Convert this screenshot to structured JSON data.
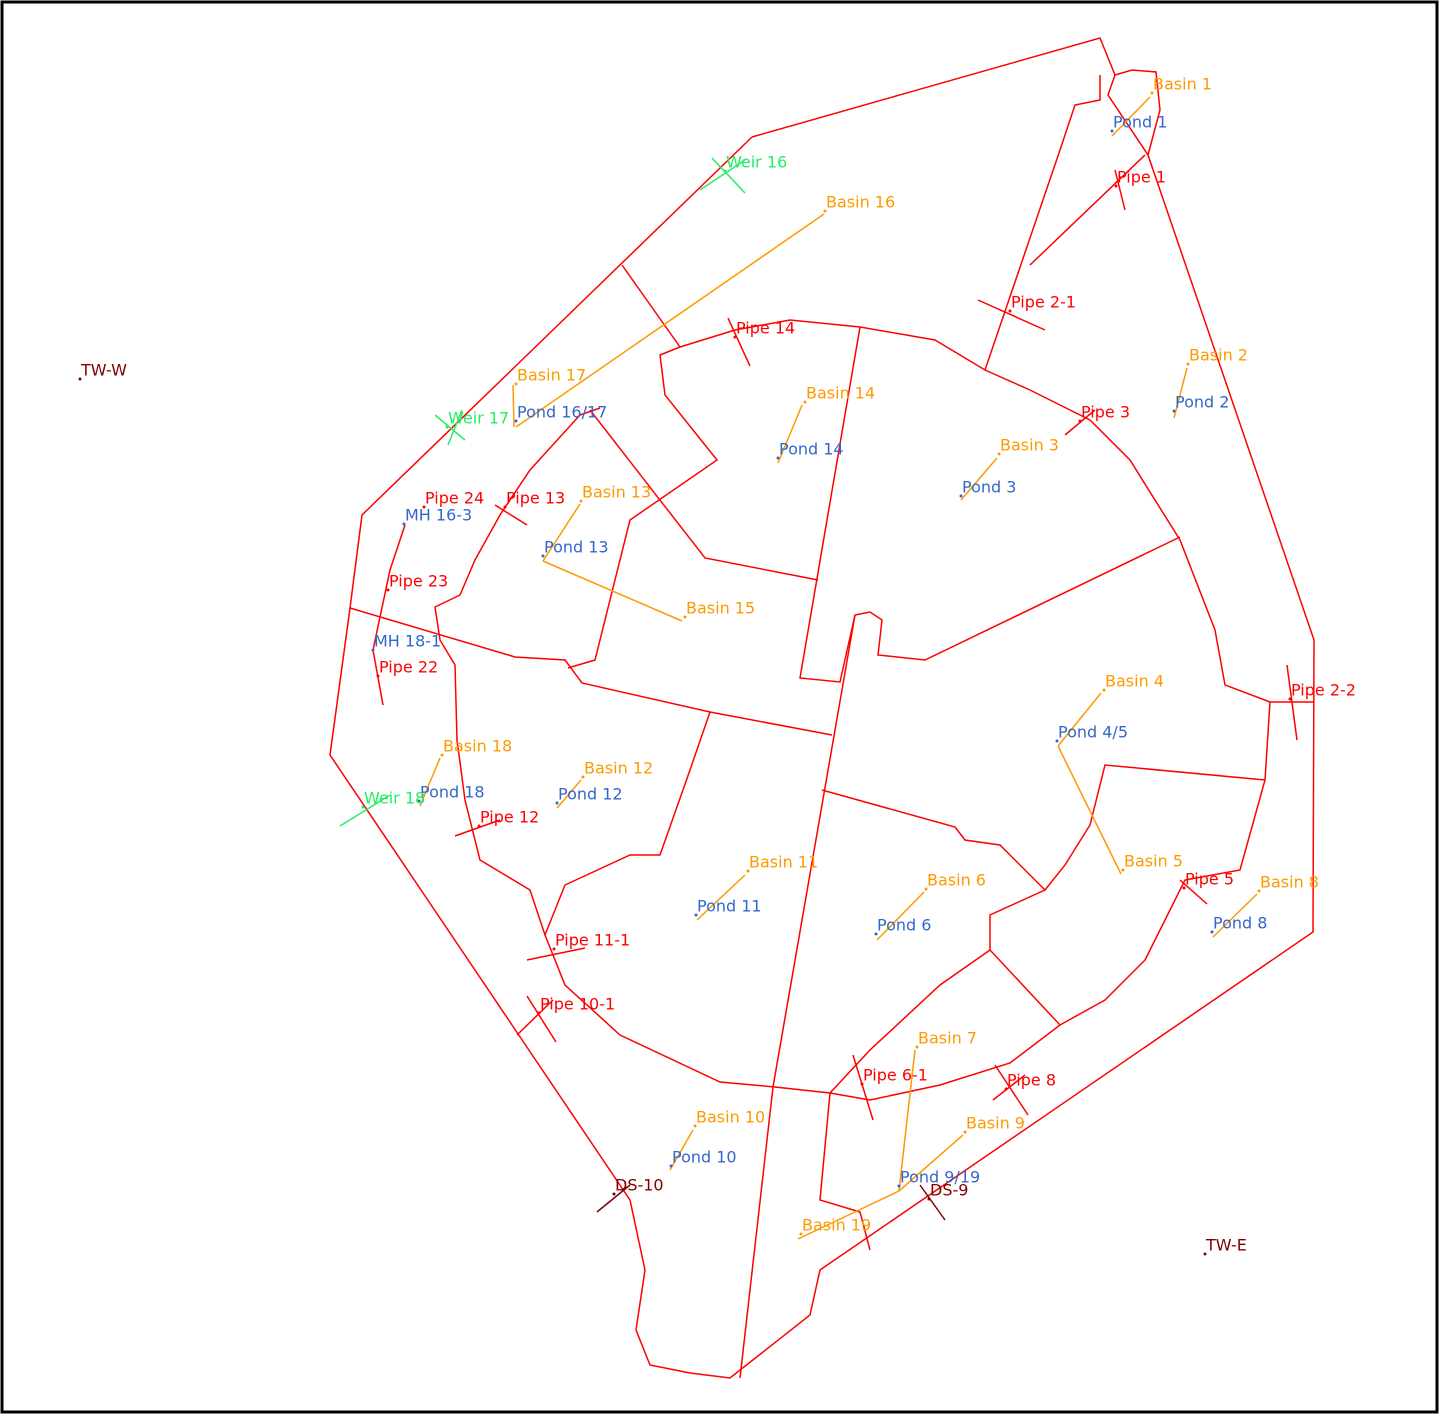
{
  "basins": [
    "Basin 1",
    "Basin 16",
    "Basin 2",
    "Basin 17",
    "Basin 14",
    "Basin 3",
    "Basin 13",
    "Basin 15",
    "Basin 4",
    "Basin 18",
    "Basin 12",
    "Basin 11",
    "Basin 5",
    "Basin 6",
    "Basin 8",
    "Basin 7",
    "Basin 10",
    "Basin 9",
    "Basin 19"
  ],
  "ponds": [
    "Pond 1",
    "Pond 2",
    "Pond 16/17",
    "Pond 14",
    "Pond 3",
    "Pond 13",
    "Pond 4/5",
    "Pond 18",
    "Pond 12",
    "Pond 11",
    "Pond 6",
    "Pond 8",
    "Pond 10",
    "Pond 9/19",
    "MH 16-3",
    "MH 18-1"
  ],
  "pipes": [
    "Pipe 1",
    "Pipe 2-1",
    "Pipe 14",
    "Pipe 3",
    "Pipe 24",
    "Pipe 13",
    "Pipe 23",
    "Pipe 22",
    "Pipe 2-2",
    "Pipe 12",
    "Pipe 5",
    "Pipe 11-1",
    "Pipe 10-1",
    "Pipe 6-1",
    "Pipe 8"
  ],
  "weirs": [
    "Weir 16",
    "Weir 17",
    "Weir 18"
  ],
  "outlets": [
    "DS-10",
    "DS-9",
    "TW-W",
    "TW-E"
  ]
}
